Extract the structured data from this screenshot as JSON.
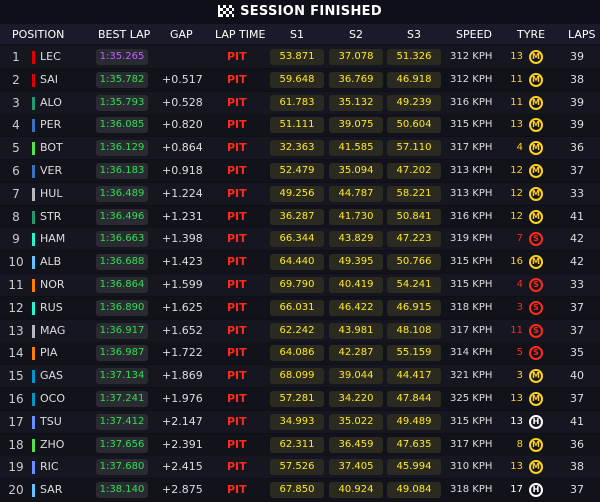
{
  "banner": {
    "title": "SESSION FINISHED"
  },
  "header": {
    "position": "POSITION",
    "best_lap": "BEST LAP",
    "gap": "GAP",
    "lap_time": "LAP TIME",
    "s1": "S1",
    "s2": "S2",
    "s3": "S3",
    "speed": "SPEED",
    "tyre": "TYRE",
    "laps": "LAPS"
  },
  "tyre_colors": {
    "M": "#ffd21f",
    "S": "#ff2a1a",
    "H": "#ffffff"
  },
  "rows": [
    {
      "pos": "1",
      "code": "LEC",
      "team": "#dc0000",
      "best": "1:35.265",
      "fastest": true,
      "gap": "",
      "lap_time": "PIT",
      "s1": "53.871",
      "s2": "37.078",
      "s3": "51.326",
      "speed": "312 KPH",
      "tyre_laps": "13",
      "tyre": "M",
      "laps": "39"
    },
    {
      "pos": "2",
      "code": "SAI",
      "team": "#dc0000",
      "best": "1:35.782",
      "fastest": false,
      "gap": "+0.517",
      "lap_time": "PIT",
      "s1": "59.648",
      "s2": "36.769",
      "s3": "46.918",
      "speed": "312 KPH",
      "tyre_laps": "11",
      "tyre": "M",
      "laps": "38"
    },
    {
      "pos": "3",
      "code": "ALO",
      "team": "#229971",
      "best": "1:35.793",
      "fastest": false,
      "gap": "+0.528",
      "lap_time": "PIT",
      "s1": "61.783",
      "s2": "35.132",
      "s3": "49.239",
      "speed": "316 KPH",
      "tyre_laps": "11",
      "tyre": "M",
      "laps": "39"
    },
    {
      "pos": "4",
      "code": "PER",
      "team": "#3671c6",
      "best": "1:36.085",
      "fastest": false,
      "gap": "+0.820",
      "lap_time": "PIT",
      "s1": "51.111",
      "s2": "39.075",
      "s3": "50.604",
      "speed": "315 KPH",
      "tyre_laps": "13",
      "tyre": "M",
      "laps": "39"
    },
    {
      "pos": "5",
      "code": "BOT",
      "team": "#52e252",
      "best": "1:36.129",
      "fastest": false,
      "gap": "+0.864",
      "lap_time": "PIT",
      "s1": "32.363",
      "s2": "41.585",
      "s3": "57.110",
      "speed": "317 KPH",
      "tyre_laps": "4",
      "tyre": "M",
      "laps": "36"
    },
    {
      "pos": "6",
      "code": "VER",
      "team": "#3671c6",
      "best": "1:36.183",
      "fastest": false,
      "gap": "+0.918",
      "lap_time": "PIT",
      "s1": "52.479",
      "s2": "35.094",
      "s3": "47.202",
      "speed": "313 KPH",
      "tyre_laps": "12",
      "tyre": "M",
      "laps": "37"
    },
    {
      "pos": "7",
      "code": "HUL",
      "team": "#b6babd",
      "best": "1:36.489",
      "fastest": false,
      "gap": "+1.224",
      "lap_time": "PIT",
      "s1": "49.256",
      "s2": "44.787",
      "s3": "58.221",
      "speed": "313 KPH",
      "tyre_laps": "12",
      "tyre": "M",
      "laps": "33"
    },
    {
      "pos": "8",
      "code": "STR",
      "team": "#229971",
      "best": "1:36.496",
      "fastest": false,
      "gap": "+1.231",
      "lap_time": "PIT",
      "s1": "36.287",
      "s2": "41.730",
      "s3": "50.841",
      "speed": "316 KPH",
      "tyre_laps": "12",
      "tyre": "M",
      "laps": "41"
    },
    {
      "pos": "9",
      "code": "HAM",
      "team": "#27f4d2",
      "best": "1:36.663",
      "fastest": false,
      "gap": "+1.398",
      "lap_time": "PIT",
      "s1": "66.344",
      "s2": "43.829",
      "s3": "47.223",
      "speed": "319 KPH",
      "tyre_laps": "7",
      "tyre": "S",
      "laps": "42"
    },
    {
      "pos": "10",
      "code": "ALB",
      "team": "#64c4ff",
      "best": "1:36.688",
      "fastest": false,
      "gap": "+1.423",
      "lap_time": "PIT",
      "s1": "64.440",
      "s2": "49.395",
      "s3": "50.766",
      "speed": "315 KPH",
      "tyre_laps": "16",
      "tyre": "M",
      "laps": "42"
    },
    {
      "pos": "11",
      "code": "NOR",
      "team": "#ff8000",
      "best": "1:36.864",
      "fastest": false,
      "gap": "+1.599",
      "lap_time": "PIT",
      "s1": "69.790",
      "s2": "40.419",
      "s3": "54.241",
      "speed": "315 KPH",
      "tyre_laps": "4",
      "tyre": "S",
      "laps": "33"
    },
    {
      "pos": "12",
      "code": "RUS",
      "team": "#27f4d2",
      "best": "1:36.890",
      "fastest": false,
      "gap": "+1.625",
      "lap_time": "PIT",
      "s1": "66.031",
      "s2": "46.422",
      "s3": "46.915",
      "speed": "318 KPH",
      "tyre_laps": "3",
      "tyre": "S",
      "laps": "37"
    },
    {
      "pos": "13",
      "code": "MAG",
      "team": "#b6babd",
      "best": "1:36.917",
      "fastest": false,
      "gap": "+1.652",
      "lap_time": "PIT",
      "s1": "62.242",
      "s2": "43.981",
      "s3": "48.108",
      "speed": "317 KPH",
      "tyre_laps": "11",
      "tyre": "S",
      "laps": "37"
    },
    {
      "pos": "14",
      "code": "PIA",
      "team": "#ff8000",
      "best": "1:36.987",
      "fastest": false,
      "gap": "+1.722",
      "lap_time": "PIT",
      "s1": "64.086",
      "s2": "42.287",
      "s3": "55.159",
      "speed": "314 KPH",
      "tyre_laps": "5",
      "tyre": "S",
      "laps": "35"
    },
    {
      "pos": "15",
      "code": "GAS",
      "team": "#0093cc",
      "best": "1:37.134",
      "fastest": false,
      "gap": "+1.869",
      "lap_time": "PIT",
      "s1": "68.099",
      "s2": "39.044",
      "s3": "44.417",
      "speed": "321 KPH",
      "tyre_laps": "3",
      "tyre": "M",
      "laps": "40"
    },
    {
      "pos": "16",
      "code": "OCO",
      "team": "#0093cc",
      "best": "1:37.241",
      "fastest": false,
      "gap": "+1.976",
      "lap_time": "PIT",
      "s1": "57.281",
      "s2": "34.220",
      "s3": "47.844",
      "speed": "325 KPH",
      "tyre_laps": "13",
      "tyre": "M",
      "laps": "37"
    },
    {
      "pos": "17",
      "code": "TSU",
      "team": "#6692ff",
      "best": "1:37.412",
      "fastest": false,
      "gap": "+2.147",
      "lap_time": "PIT",
      "s1": "34.993",
      "s2": "35.022",
      "s3": "49.489",
      "speed": "315 KPH",
      "tyre_laps": "13",
      "tyre": "H",
      "laps": "41"
    },
    {
      "pos": "18",
      "code": "ZHO",
      "team": "#52e252",
      "best": "1:37.656",
      "fastest": false,
      "gap": "+2.391",
      "lap_time": "PIT",
      "s1": "62.311",
      "s2": "36.459",
      "s3": "47.635",
      "speed": "317 KPH",
      "tyre_laps": "8",
      "tyre": "M",
      "laps": "36"
    },
    {
      "pos": "19",
      "code": "RIC",
      "team": "#6692ff",
      "best": "1:37.680",
      "fastest": false,
      "gap": "+2.415",
      "lap_time": "PIT",
      "s1": "57.526",
      "s2": "37.405",
      "s3": "45.994",
      "speed": "310 KPH",
      "tyre_laps": "13",
      "tyre": "M",
      "laps": "38"
    },
    {
      "pos": "20",
      "code": "SAR",
      "team": "#64c4ff",
      "best": "1:38.140",
      "fastest": false,
      "gap": "+2.875",
      "lap_time": "PIT",
      "s1": "67.850",
      "s2": "40.924",
      "s3": "49.084",
      "speed": "318 KPH",
      "tyre_laps": "17",
      "tyre": "H",
      "laps": "37"
    }
  ]
}
